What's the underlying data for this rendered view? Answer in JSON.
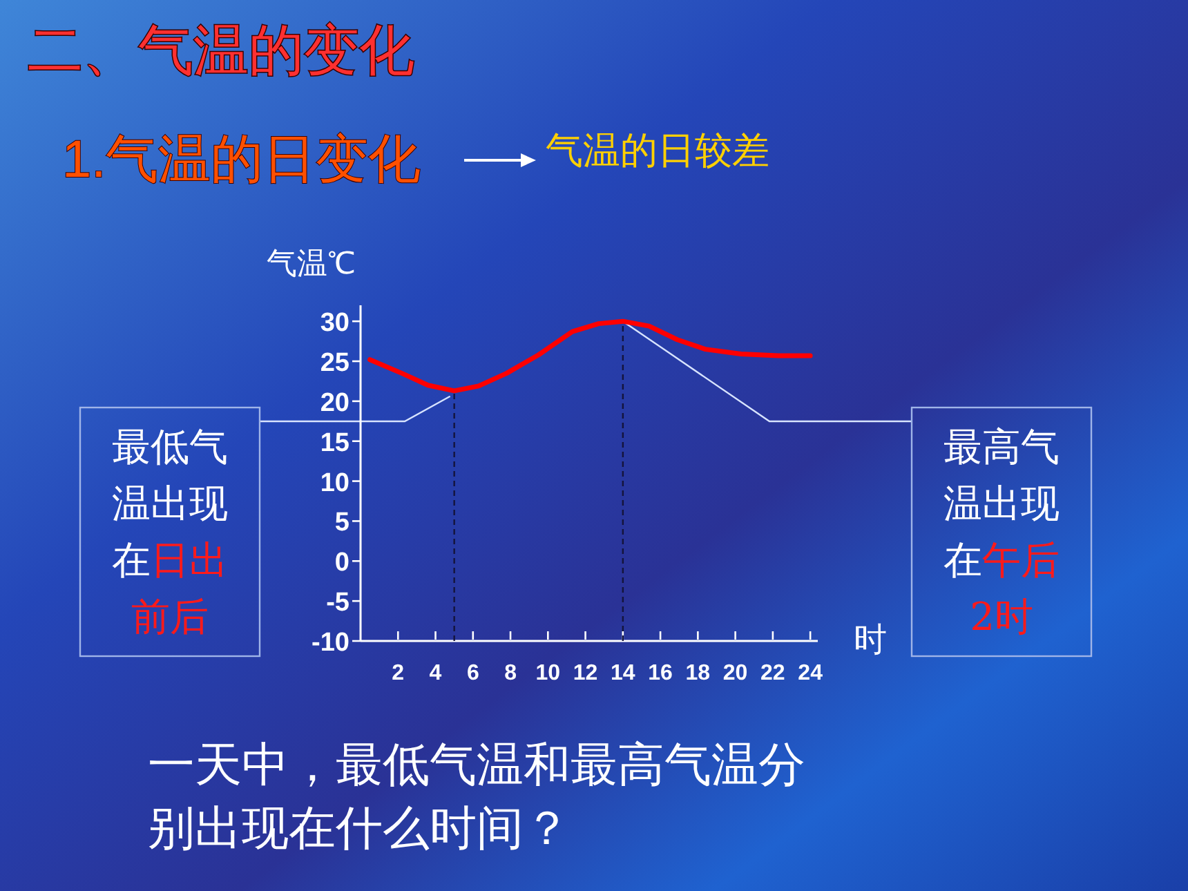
{
  "chart_data": {
    "type": "line",
    "title": "二、气温的变化",
    "subtitle": "1.气温的日变化",
    "ylabel": "气温℃",
    "xlabel": "时",
    "xlim": [
      0,
      24.4
    ],
    "xticks": [
      2,
      4,
      6,
      8,
      10,
      12,
      14,
      16,
      18,
      20,
      22,
      24
    ],
    "ylim": [
      -10,
      32
    ],
    "yticks": [
      -10,
      -5,
      0,
      5,
      10,
      15,
      20,
      25,
      30
    ],
    "grid": false,
    "line_style": "solid",
    "marker": "none",
    "series": [
      {
        "color": "#ff0000",
        "x": [
          0.5,
          2.2,
          3.6,
          5,
          6.3,
          7.8,
          9.5,
          11.3,
          12.7,
          14,
          15.4,
          16.9,
          18.4,
          20.3,
          22.3,
          24
        ],
        "values": [
          25.2,
          23.5,
          22.0,
          21.3,
          21.9,
          23.5,
          25.8,
          28.7,
          29.7,
          30,
          29.4,
          27.7,
          26.5,
          25.9,
          25.7,
          25.7
        ]
      }
    ],
    "ref_lines": [
      {
        "axis": "x",
        "value": 5,
        "line_style": "dashed",
        "color": "#14143c"
      },
      {
        "axis": "x",
        "value": 14,
        "line_style": "dashed",
        "color": "#14143c"
      }
    ],
    "annotations": [
      "气温的日较差",
      {
        "text": "最低气温出现在日出前后",
        "x": 5,
        "y": 21.3
      },
      {
        "text": "最高气温出现在午后2时",
        "x": 14,
        "y": 30
      },
      "一天中，最低气温和最高气温分别出现在什么时间？"
    ]
  }
}
